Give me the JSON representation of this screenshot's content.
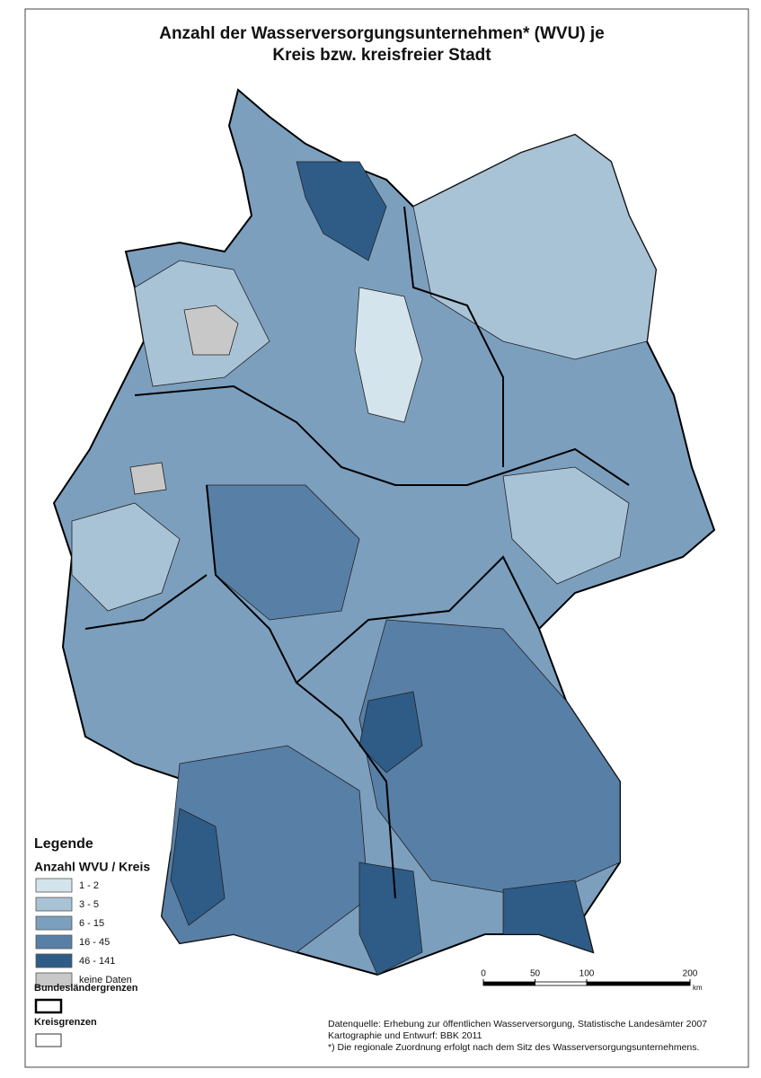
{
  "title": [
    "Anzahl der Wasserversorgungsunternehmen* (WVU) je",
    "Kreis bzw. kreisfreier Stadt"
  ],
  "legend": {
    "heading": "Legende",
    "subtitle": "Anzahl WVU / Kreis",
    "classes": [
      {
        "label": "1 - 2",
        "color": "#d4e4ec"
      },
      {
        "label": "3 - 5",
        "color": "#a9c3d6"
      },
      {
        "label": "6 - 15",
        "color": "#7c9fbe"
      },
      {
        "label": "16 - 45",
        "color": "#587fa6"
      },
      {
        "label": "46 - 141",
        "color": "#2e5c87"
      },
      {
        "label": "keine Daten",
        "color": "#c8c8c8"
      }
    ],
    "boundaries": [
      "Bundesländergrenzen",
      "Kreisgrenzen"
    ]
  },
  "scale_bar": {
    "ticks": [
      0,
      50,
      100,
      200
    ],
    "unit": "km"
  },
  "source": [
    "Datenquelle: Erhebung zur öffentlichen Wasserversorgung, Statistische Landesämter 2007",
    "Kartographie und Entwurf: BBK 2011",
    "*) Die regionale Zuordnung erfolgt nach dem Sitz des Wasserversorgungsunternehmens."
  ]
}
